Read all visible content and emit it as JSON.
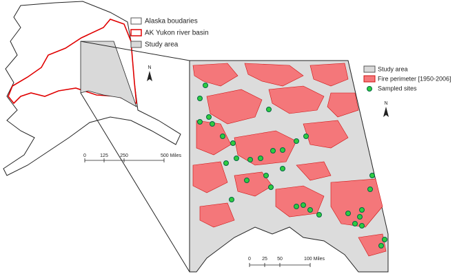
{
  "legend_main": {
    "items": [
      "Alaska boudaries",
      "AK Yukon river basin",
      "Study area"
    ]
  },
  "legend_inset": {
    "items": [
      "Study area",
      "Fire perimeter [1950-2006]",
      "Sampled sites"
    ]
  },
  "north_main": "N",
  "north_inset": "N",
  "scale_main": {
    "labels": [
      "0",
      "125",
      "250",
      "500 Miles"
    ]
  },
  "scale_inset": {
    "labels": [
      "0",
      "25",
      "50",
      "100 Miles"
    ]
  }
}
